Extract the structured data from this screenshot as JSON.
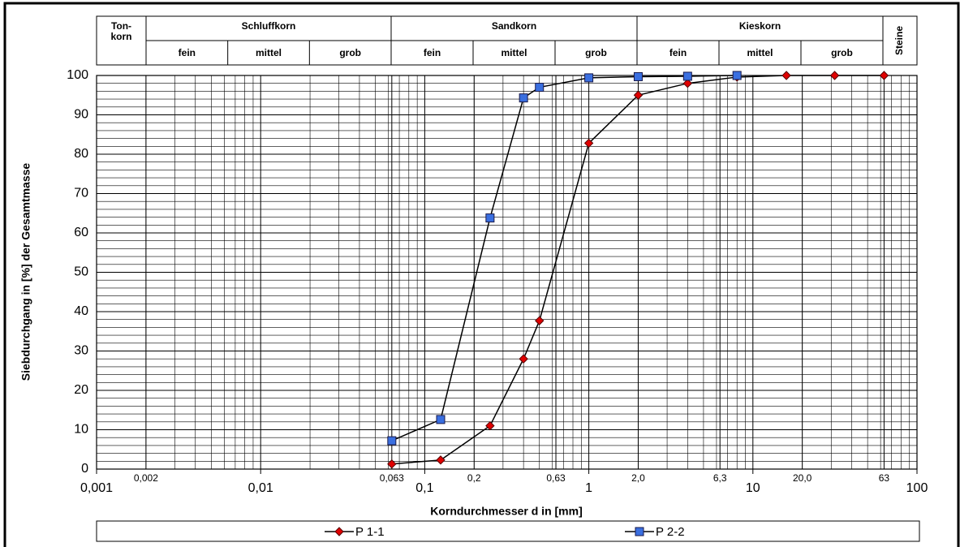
{
  "chart_data": {
    "type": "line",
    "header": [
      {
        "label": [
          "Ton-",
          "korn"
        ]
      },
      {
        "label": [
          "Schluffkorn"
        ],
        "sub": [
          "fein",
          "mittel",
          "grob"
        ]
      },
      {
        "label": [
          "Sandkorn"
        ],
        "sub": [
          "fein",
          "mittel",
          "grob"
        ]
      },
      {
        "label": [
          "Kieskorn"
        ],
        "sub": [
          "fein",
          "mittel",
          "grob"
        ]
      },
      {
        "label": [
          "Steine"
        ]
      }
    ],
    "x_label": "Korndurchmesser d in [mm]",
    "y_label": "Siebdurchgang in [%] der Gesamtmasse",
    "log_x": true,
    "grid": true,
    "xlim": [
      0.001,
      100
    ],
    "ylim": [
      0,
      100
    ],
    "xticks": [
      {
        "value": 0.001,
        "label": "0,001"
      },
      {
        "value": 0.002,
        "label": "0,002"
      },
      {
        "value": 0.01,
        "label": "0,01"
      },
      {
        "value": 0.063,
        "label": "0,063"
      },
      {
        "value": 0.1,
        "label": "0,1"
      },
      {
        "value": 0.2,
        "label": "0,2"
      },
      {
        "value": 0.63,
        "label": "0,63"
      },
      1,
      {
        "value": 2,
        "label": "2,0"
      },
      {
        "value": 6.3,
        "label": "6,3"
      },
      10,
      {
        "value": 20,
        "label": "20,0"
      },
      63,
      100
    ],
    "yticks": [
      0,
      10,
      20,
      30,
      40,
      50,
      60,
      70,
      80,
      90,
      100
    ],
    "legend": "bottom",
    "series": [
      {
        "name": "P 1-1",
        "color": "#e00000",
        "marker": "diamond",
        "x": [
          0.063,
          0.125,
          0.25,
          0.4,
          0.5,
          1,
          2,
          4,
          8,
          16,
          31.5,
          63
        ],
        "values": [
          1.3,
          2.3,
          11,
          28,
          37.7,
          82.8,
          95,
          98,
          99.6,
          100,
          100,
          100
        ]
      },
      {
        "name": "P 2-2",
        "color": "#3a6fe0",
        "marker": "square",
        "x": [
          0.063,
          0.125,
          0.25,
          0.4,
          0.5,
          1,
          2,
          4,
          8
        ],
        "values": [
          7.2,
          12.6,
          63.8,
          94.3,
          97,
          99.4,
          99.7,
          99.8,
          100
        ]
      }
    ]
  }
}
